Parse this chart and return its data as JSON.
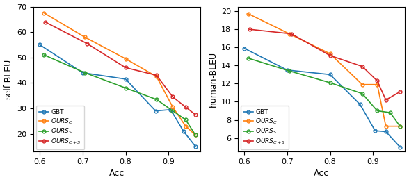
{
  "left": {
    "ylabel": "self-BLEU",
    "xlabel": "Acc",
    "ylim": [
      13,
      70
    ],
    "yticks": [
      20,
      30,
      40,
      50,
      60,
      70
    ],
    "xlim": [
      0.585,
      0.975
    ],
    "xticks": [
      0.6,
      0.7,
      0.8,
      0.9
    ],
    "series": {
      "GBT": {
        "color": "#1f77b4",
        "x": [
          0.6,
          0.7,
          0.8,
          0.87,
          0.905,
          0.935,
          0.963
        ],
        "y": [
          55.0,
          44.0,
          41.5,
          29.0,
          29.5,
          21.0,
          15.0
        ]
      },
      "OURS_C": {
        "color": "#ff7f0e",
        "x": [
          0.61,
          0.705,
          0.8,
          0.872,
          0.91,
          0.94,
          0.963
        ],
        "y": [
          67.5,
          58.0,
          49.5,
          42.5,
          30.5,
          23.0,
          19.5
        ]
      },
      "OURS_S": {
        "color": "#2ca02c",
        "x": [
          0.61,
          0.705,
          0.8,
          0.872,
          0.91,
          0.94,
          0.963
        ],
        "y": [
          51.0,
          44.0,
          38.0,
          33.5,
          29.0,
          25.5,
          19.5
        ]
      },
      "OURS_C+S": {
        "color": "#d62728",
        "x": [
          0.612,
          0.71,
          0.8,
          0.872,
          0.91,
          0.94,
          0.963
        ],
        "y": [
          64.0,
          55.5,
          46.0,
          43.0,
          34.5,
          30.5,
          27.5
        ]
      }
    }
  },
  "right": {
    "ylabel": "human-BLEU",
    "xlabel": "Acc",
    "ylim": [
      4.5,
      20.5
    ],
    "yticks": [
      6,
      8,
      10,
      12,
      14,
      16,
      18,
      20
    ],
    "xlim": [
      0.585,
      0.975
    ],
    "xticks": [
      0.6,
      0.7,
      0.8,
      0.9
    ],
    "series": {
      "GBT": {
        "color": "#1f77b4",
        "x": [
          0.6,
          0.7,
          0.8,
          0.87,
          0.905,
          0.93,
          0.963
        ],
        "y": [
          15.9,
          13.5,
          13.0,
          9.7,
          6.8,
          6.7,
          5.0
        ]
      },
      "OURS_C": {
        "color": "#ff7f0e",
        "x": [
          0.61,
          0.705,
          0.8,
          0.875,
          0.91,
          0.93,
          0.963
        ],
        "y": [
          19.7,
          17.5,
          15.3,
          11.9,
          11.9,
          7.3,
          7.3
        ]
      },
      "OURS_S": {
        "color": "#2ca02c",
        "x": [
          0.61,
          0.705,
          0.8,
          0.875,
          0.91,
          0.94,
          0.963
        ],
        "y": [
          14.8,
          13.4,
          12.1,
          10.9,
          9.0,
          8.8,
          7.3
        ]
      },
      "OURS_C+S": {
        "color": "#d62728",
        "x": [
          0.612,
          0.71,
          0.8,
          0.875,
          0.91,
          0.93,
          0.963
        ],
        "y": [
          18.0,
          17.5,
          15.1,
          13.9,
          12.3,
          10.2,
          11.1
        ]
      }
    }
  }
}
